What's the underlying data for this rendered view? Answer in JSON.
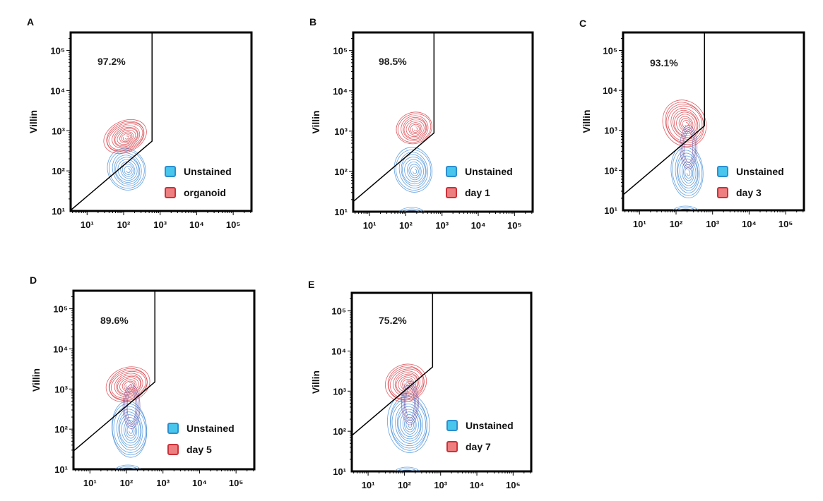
{
  "colors": {
    "unstained_line": "#4a90d9",
    "unstained_swatch_fill": "#49c6ec",
    "unstained_swatch_stroke": "#2c8fcf",
    "sample_line": "#d9424a",
    "sample_swatch_fill": "#ee7f80",
    "sample_swatch_stroke": "#c9333b",
    "overlap_line": "#6a4fa3",
    "axis": "#000000",
    "gate": "#000000"
  },
  "chart_data": [
    {
      "type": "contour",
      "panel": "A",
      "ylabel": "Villin",
      "xlabel": "",
      "x_scale": "log",
      "y_scale": "log",
      "xticks": [
        "10¹",
        "10²",
        "10³",
        "10⁴",
        "10⁵"
      ],
      "yticks": [
        "10¹",
        "10²",
        "10³",
        "10⁴",
        "10⁵"
      ],
      "gate_percent": "97.2%",
      "gate": {
        "vertical_x": 600,
        "corner_y": 550
      },
      "legend": [
        "Unstained",
        "organoid"
      ],
      "series": [
        {
          "name": "Unstained",
          "center": [
            120,
            110
          ]
        },
        {
          "name": "organoid",
          "center": [
            110,
            720
          ]
        }
      ]
    },
    {
      "type": "contour",
      "panel": "B",
      "ylabel": "Villin",
      "xlabel": "",
      "x_scale": "log",
      "y_scale": "log",
      "xticks": [
        "10¹",
        "10²",
        "10³",
        "10⁴",
        "10⁵"
      ],
      "yticks": [
        "10¹",
        "10²",
        "10³",
        "10⁴",
        "10⁵"
      ],
      "gate_percent": "98.5%",
      "gate": {
        "vertical_x": 600,
        "corner_y": 900
      },
      "legend": [
        "Unstained",
        "day 1"
      ],
      "series": [
        {
          "name": "Unstained",
          "center": [
            160,
            110
          ]
        },
        {
          "name": "day 1",
          "center": [
            170,
            1200
          ]
        }
      ]
    },
    {
      "type": "contour",
      "panel": "C",
      "ylabel": "Villin",
      "xlabel": "",
      "x_scale": "log",
      "y_scale": "log",
      "xticks": [
        "10¹",
        "10²",
        "10³",
        "10⁴",
        "10⁵"
      ],
      "yticks": [
        "10¹",
        "10²",
        "10³",
        "10⁴",
        "10⁵"
      ],
      "gate_percent": "93.1%",
      "gate": {
        "vertical_x": 600,
        "corner_y": 1300
      },
      "legend": [
        "Unstained",
        "day 3"
      ],
      "series": [
        {
          "name": "Unstained",
          "center": [
            200,
            95
          ]
        },
        {
          "name": "day 3",
          "center": [
            170,
            1500
          ]
        }
      ]
    },
    {
      "type": "contour",
      "panel": "D",
      "ylabel": "Villin",
      "xlabel": "",
      "x_scale": "log",
      "y_scale": "log",
      "xticks": [
        "10¹",
        "10²",
        "10³",
        "10⁴",
        "10⁵"
      ],
      "yticks": [
        "10¹",
        "10²",
        "10³",
        "10⁴",
        "10⁵"
      ],
      "gate_percent": "89.6%",
      "gate": {
        "vertical_x": 600,
        "corner_y": 1500
      },
      "legend": [
        "Unstained",
        "day 5"
      ],
      "series": [
        {
          "name": "Unstained",
          "center": [
            120,
            100
          ]
        },
        {
          "name": "day 5",
          "center": [
            110,
            1300
          ]
        }
      ]
    },
    {
      "type": "contour",
      "panel": "E",
      "ylabel": "Villin",
      "xlabel": "",
      "x_scale": "log",
      "y_scale": "log",
      "xticks": [
        "10¹",
        "10²",
        "10³",
        "10⁴",
        "10⁵"
      ],
      "yticks": [
        "10¹",
        "10²",
        "10³",
        "10⁴",
        "10⁵"
      ],
      "gate_percent": "75.2%",
      "gate": {
        "vertical_x": 600,
        "corner_y": 4000
      },
      "legend": [
        "Unstained",
        "day 7"
      ],
      "series": [
        {
          "name": "Unstained",
          "center": [
            130,
            160
          ]
        },
        {
          "name": "day 7",
          "center": [
            110,
            1600
          ]
        }
      ]
    }
  ]
}
